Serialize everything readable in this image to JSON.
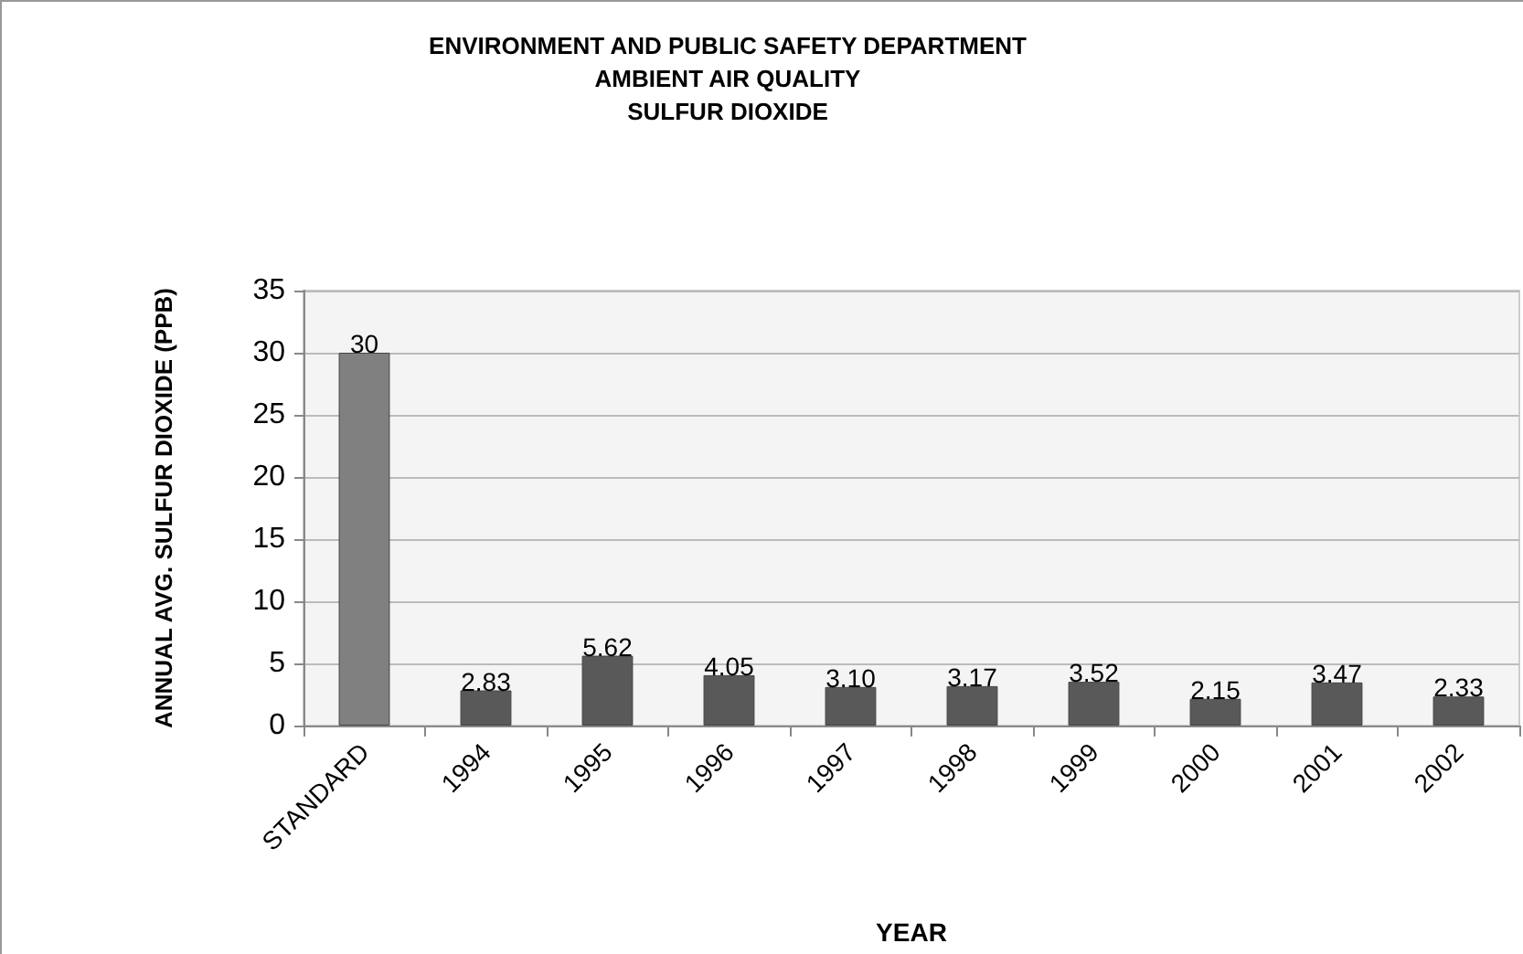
{
  "chart_data": {
    "type": "bar",
    "title": "ENVIRONMENT AND PUBLIC SAFETY DEPARTMENT\nAMBIENT AIR QUALITY\nSULFUR DIOXIDE",
    "xlabel": "YEAR",
    "ylabel": "ANNUAL AVG. SULFUR DIOXIDE (PPB)",
    "categories": [
      "STANDARD",
      "1994",
      "1995",
      "1996",
      "1997",
      "1998",
      "1999",
      "2000",
      "2001",
      "2002"
    ],
    "values": [
      30,
      2.83,
      5.62,
      4.05,
      3.1,
      3.17,
      3.52,
      2.15,
      3.47,
      2.33
    ],
    "value_labels": [
      "30",
      "2.83",
      "5.62",
      "4.05",
      "3.10",
      "3.17",
      "3.52",
      "2.15",
      "3.47",
      "2.33"
    ],
    "colors": [
      "#808080",
      "#595959",
      "#595959",
      "#595959",
      "#595959",
      "#595959",
      "#595959",
      "#595959",
      "#595959",
      "#595959"
    ],
    "ylim": [
      0,
      35
    ],
    "yticks": [
      0,
      5,
      10,
      15,
      20,
      25,
      30,
      35
    ],
    "grid": "y"
  }
}
